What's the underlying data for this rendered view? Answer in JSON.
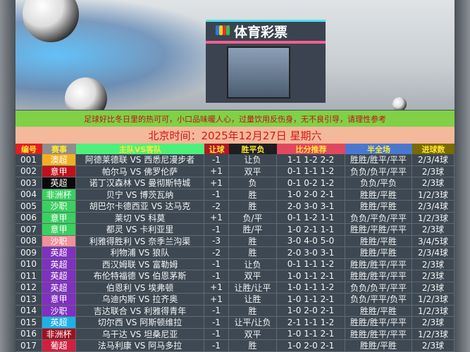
{
  "banner": {
    "store_sign": "体育彩票"
  },
  "notice": "足球好比冬日里的热可可，小口品味暖人心，过量饮用反伤身，无不良引导，请理性参考",
  "date_line": "北京时间：2025年12月27日  星期六",
  "headers": [
    "编号",
    "赛事",
    "主队VS客队",
    "让球",
    "胜平负",
    "比分推荐",
    "半全场",
    "进球数"
  ],
  "header_colors": [
    "#e02020",
    "#8e8e8e",
    "#4ef07c",
    "#b01828",
    "#1e1e1e",
    "#e04860",
    "#4a78d0",
    "#7a6a00"
  ],
  "rows": [
    {
      "no": "001",
      "league": "澳超",
      "league_color": "#f0b020",
      "match": "阿德莱德联 VS 西悉尼漫步者",
      "handicap": "-1",
      "result": "让负",
      "scores": "1-1 1-2 2-2",
      "half_full": "胜胜/胜平/平平",
      "goals": "2/3/4球"
    },
    {
      "no": "002",
      "league": "意甲",
      "league_color": "#c0101a",
      "match": "帕尔马 VS 佛罗伦萨",
      "handicap": "+1",
      "result": "双平",
      "scores": "0-1 1-1 1-2",
      "half_full": "负负/负平/平平",
      "goals": "2/3球"
    },
    {
      "no": "003",
      "league": "英超",
      "league_color": "#0a0a0a",
      "match": "诺丁汉森林 VS 曼彻斯特城",
      "handicap": "+1",
      "result": "负",
      "scores": "0-1 0-2 1-2",
      "half_full": "负负/平负",
      "goals": "2/3球"
    },
    {
      "no": "004",
      "league": "非洲杯",
      "league_color": "#3ad060",
      "match": "贝宁 VS 博茨瓦纳",
      "handicap": "-1",
      "result": "胜",
      "scores": "1-0 2-0 2-1",
      "half_full": "胜胜/平胜",
      "goals": "1/2/3球"
    },
    {
      "no": "005",
      "league": "沙职",
      "league_color": "#3ad060",
      "match": "胡巴尔卡德西亚 VS 达马克",
      "handicap": "-2",
      "result": "胜",
      "scores": "2-0 3-0 3-1",
      "half_full": "胜胜/平胜",
      "goals": "2/3/4球"
    },
    {
      "no": "006",
      "league": "意甲",
      "league_color": "#3ad060",
      "match": "莱切 VS 科莫",
      "handicap": "+1",
      "result": "负/平",
      "scores": "0-1 1-2 1-1",
      "half_full": "负负/平负/平平",
      "goals": "1/2/3球"
    },
    {
      "no": "007",
      "league": "意甲",
      "league_color": "#3ad060",
      "match": "都灵 VS 卡利亚里",
      "handicap": "-1",
      "result": "胜/平",
      "scores": "1-0 2-1 1-1",
      "half_full": "胜胜/平胜/平平",
      "goals": "2/3球"
    },
    {
      "no": "008",
      "league": "沙职",
      "league_color": "#f0909a",
      "match": "利雅得胜利 VS 奈季兰沟渠",
      "handicap": "-3",
      "result": "胜",
      "scores": "3-0 4-0 5-0",
      "half_full": "胜胜/平胜",
      "goals": "3/4/5球"
    },
    {
      "no": "009",
      "league": "英超",
      "league_color": "#8030c0",
      "match": "利物浦 VS 狼队",
      "handicap": "-2",
      "result": "胜",
      "scores": "2-0 3-0 3-1",
      "half_full": "胜胜/平胜",
      "goals": "2/3/4球"
    },
    {
      "no": "010",
      "league": "英超",
      "league_color": "#8030c0",
      "match": "西汉姆联 VS 富勒姆",
      "handicap": "-1",
      "result": "让负",
      "scores": "0-1 1-1 1-2",
      "half_full": "胜胜/胜平/平平",
      "goals": "2/3球"
    },
    {
      "no": "011",
      "league": "英超",
      "league_color": "#8030c0",
      "match": "布伦特福德 VS 伯恩茅斯",
      "handicap": "-1",
      "result": "双平",
      "scores": "1-0 1-1 2-1",
      "half_full": "胜胜/胜平/平平",
      "goals": "2/3球"
    },
    {
      "no": "012",
      "league": "英超",
      "league_color": "#8030c0",
      "match": "伯恩利 VS 埃弗顿",
      "handicap": "+1",
      "result": "让胜/让平",
      "scores": "1-0 1-1 1-2",
      "half_full": "负负/负平/平平",
      "goals": "2/3球"
    },
    {
      "no": "013",
      "league": "意甲",
      "league_color": "#8030c0",
      "match": "乌迪内斯 VS 拉齐奥",
      "handicap": "+1",
      "result": "让胜",
      "scores": "1-0 1-1 2-1",
      "half_full": "负负/平平/负平",
      "goals": "1/2/3球"
    },
    {
      "no": "014",
      "league": "沙职",
      "league_color": "#8030c0",
      "match": "吉达联合 VS 利雅得青年",
      "handicap": "-1",
      "result": "胜",
      "scores": "1-0 2-0 2-1",
      "half_full": "胜胜/平胜",
      "goals": "1/2/3球"
    },
    {
      "no": "015",
      "league": "英超",
      "league_color": "#20b0e8",
      "match": "切尔西 VS 阿斯顿维拉",
      "handicap": "-1",
      "result": "让平/让负",
      "scores": "2-1 1-1 1-2",
      "half_full": "胜胜/胜平/平平",
      "goals": "2/3球"
    },
    {
      "no": "016",
      "league": "非洲杯",
      "league_color": "#a01020",
      "match": "乌干达 VS 坦桑尼亚",
      "handicap": "-1",
      "result": "双平",
      "scores": "1-0 1-1 2-1",
      "half_full": "胜胜/胜平/平平",
      "goals": "1/2/3球"
    },
    {
      "no": "017",
      "league": "葡超",
      "league_color": "#d02040",
      "match": "法马利康 VS 阿马多拉",
      "handicap": "-1",
      "result": "胜",
      "scores": "1-0 2-0 2-1",
      "half_full": "胜胜/平胜",
      "goals": "2/3球"
    }
  ]
}
